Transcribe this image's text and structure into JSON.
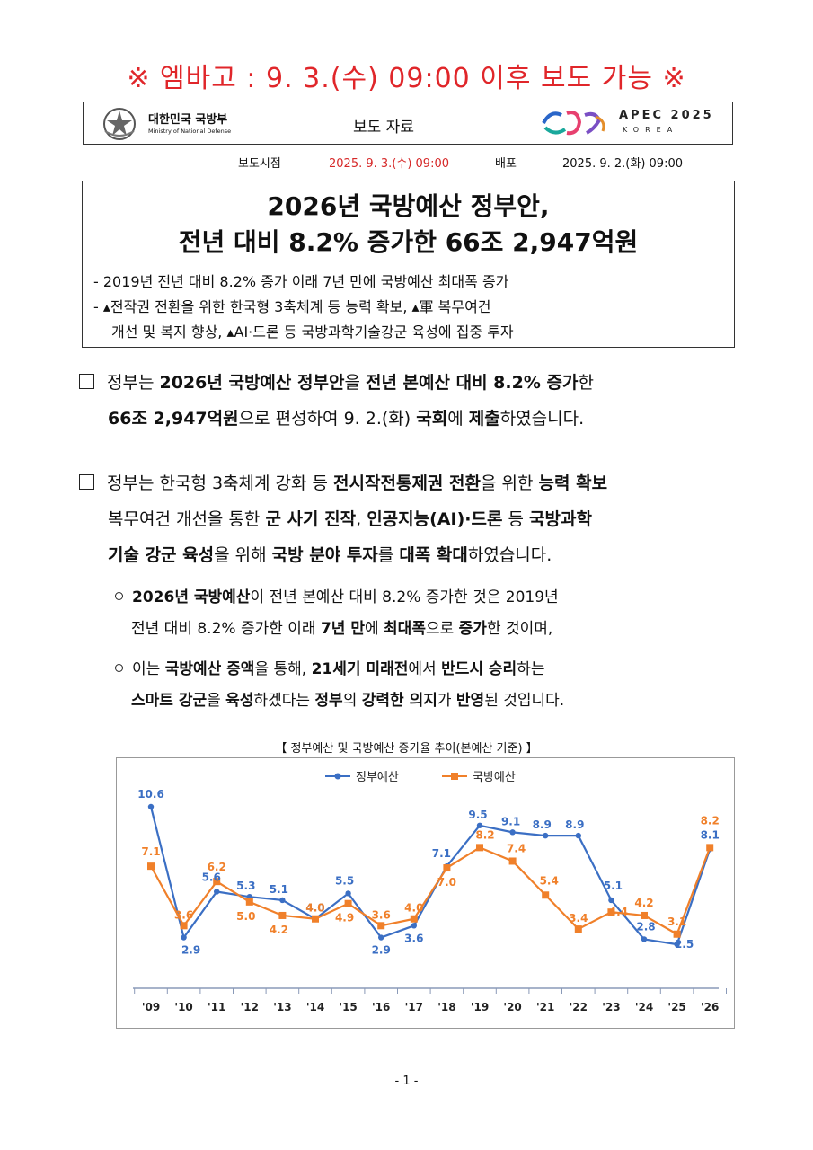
{
  "embargo": "※ 엠바고 : 9. 3.(수) 09:00 이후 보도 가능 ※",
  "header": {
    "ministry_name": "대한민국 국방부",
    "ministry_en": "Ministry of National Defense",
    "doc_type": "보도 자료",
    "apec_name": "APEC 2025",
    "apec_country": "KOREA"
  },
  "release": {
    "time_label": "보도시점",
    "time_value": "2025. 9. 3.(수) 09:00",
    "dist_label": "배포",
    "dist_value": "2025. 9. 2.(화) 09:00"
  },
  "title": {
    "line1": "2026년 국방예산 정부안,",
    "line2": "전년 대비 8.2% 증가한 66조 2,947억원",
    "sub1": "- 2019년 전년 대비 8.2% 증가 이래 7년 만에 국방예산 최대폭 증가",
    "sub2a": "- ▴전작권 전환을 위한 한국형 3축체계 등 능력 확보, ▴軍 복무여건",
    "sub2b": "개선 및 복지 향상, ▴AI·드론 등 국방과학기술강군 육성에 집중 투자"
  },
  "para1": {
    "a": "정부는 ",
    "b": "2026년 국방예산 정부안",
    "c": "을 ",
    "d": "전년 본예산 대비 8.2% 증가",
    "e": "한",
    "f": "66조 2,947억원",
    "g": "으로 편성하여 9. 2.(화) ",
    "h": "국회",
    "i": "에 ",
    "j": "제출",
    "k": "하였습니다."
  },
  "para2": {
    "a": "정부는 한국형 3축체계 강화 등 ",
    "b": "전시작전통제권 전환",
    "c": "을 위한 ",
    "d": "능력 확보",
    "e": "복무여건 개선을 통한 ",
    "f": "군 사기 진작",
    "g": ", ",
    "h": "인공지능(AI)·드론",
    "i": " 등 ",
    "j": "국방과학",
    "k": "기술 강군 육성",
    "l": "을 위해 ",
    "m": "국방 분야 투자",
    "n": "를 ",
    "o": "대폭 확대",
    "p": "하였습니다."
  },
  "bullet1": {
    "a": "2026년 국방예산",
    "b": "이 전년 본예산 대비 8.2% 증가한 것은 2019년",
    "c": "전년 대비 8.2% 증가한 이래 ",
    "d": "7년 만",
    "e": "에 ",
    "f": "최대폭",
    "g": "으로 ",
    "h": "증가",
    "i": "한 것이며,"
  },
  "bullet2": {
    "a": "이는 ",
    "b": "국방예산 증액",
    "c": "을 통해, ",
    "d": "21세기 미래전",
    "e": "에서 ",
    "f": "반드시 승리",
    "g": "하는",
    "h": "스마트 강군",
    "i": "을 ",
    "j": "육성",
    "k": "하겠다는 ",
    "l": "정부",
    "m": "의 ",
    "n": "강력한 의지",
    "o": "가 ",
    "p": "반영",
    "q": "된 것입니다."
  },
  "chart_title": "【 정부예산 및 국방예산 증가율 추이(본예산 기준) 】",
  "chart_data": {
    "type": "line",
    "categories": [
      "'09",
      "'10",
      "'11",
      "'12",
      "'13",
      "'14",
      "'15",
      "'16",
      "'17",
      "'18",
      "'19",
      "'20",
      "'21",
      "'22",
      "'23",
      "'24",
      "'25",
      "'26"
    ],
    "series": [
      {
        "name": "정부예산",
        "color": "#3b6fc4",
        "values": [
          10.6,
          2.9,
          5.6,
          5.3,
          5.1,
          4.0,
          5.5,
          2.9,
          3.6,
          7.1,
          9.5,
          9.1,
          8.9,
          8.9,
          5.1,
          2.8,
          2.5,
          8.1
        ]
      },
      {
        "name": "국방예산",
        "color": "#f0802a",
        "values": [
          7.1,
          3.6,
          6.2,
          5.0,
          4.2,
          4.0,
          4.9,
          3.6,
          4.0,
          7.0,
          8.2,
          7.4,
          5.4,
          3.4,
          4.4,
          4.2,
          3.1,
          8.2
        ]
      }
    ],
    "legend": "top-center",
    "grid": false
  },
  "page_number": "- 1 -"
}
